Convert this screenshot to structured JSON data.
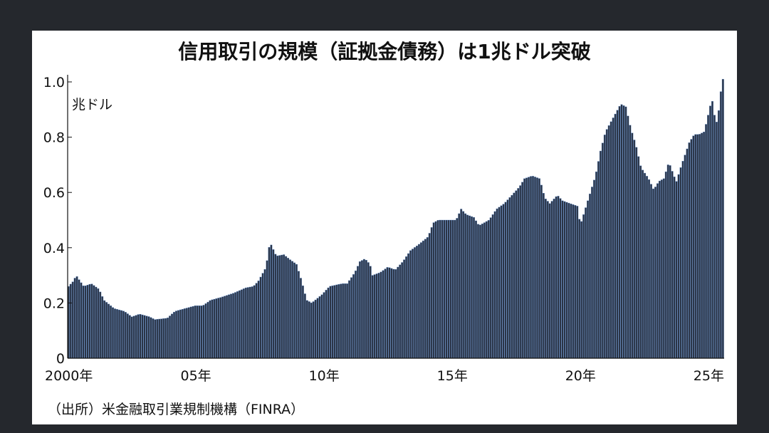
{
  "title": "信用取引の規模（証拠金債務）は1兆ドル突破",
  "unit_label": "兆ドル",
  "source": "（出所）米金融取引業規制機構（FINRA）",
  "colors": {
    "bar": "#2a3446",
    "bar_edge": "#5b86c4",
    "background": "#25282d",
    "card": "#ffffff"
  },
  "chart_data": {
    "type": "bar",
    "ylabel": "兆ドル",
    "ylim": [
      0,
      1.0
    ],
    "yticks": [
      {
        "value": 0,
        "label": "0"
      },
      {
        "value": 0.2,
        "label": "0.2"
      },
      {
        "value": 0.4,
        "label": "0.4"
      },
      {
        "value": 0.6,
        "label": "0.6"
      },
      {
        "value": 0.8,
        "label": "0.8"
      },
      {
        "value": 1.0,
        "label": "1.0"
      }
    ],
    "xrange": [
      2000.0,
      2025.6
    ],
    "xticks": [
      {
        "value": 2000,
        "label": "2000年"
      },
      {
        "value": 2005,
        "label": "05年"
      },
      {
        "value": 2010,
        "label": "10年"
      },
      {
        "value": 2015,
        "label": "15年"
      },
      {
        "value": 2020,
        "label": "20年"
      },
      {
        "value": 2025,
        "label": "25年"
      }
    ],
    "anchors": [
      [
        2000.0,
        0.26
      ],
      [
        2000.2,
        0.28
      ],
      [
        2000.3,
        0.3
      ],
      [
        2000.6,
        0.26
      ],
      [
        2000.9,
        0.27
      ],
      [
        2001.2,
        0.25
      ],
      [
        2001.4,
        0.21
      ],
      [
        2001.8,
        0.18
      ],
      [
        2002.2,
        0.17
      ],
      [
        2002.5,
        0.15
      ],
      [
        2002.8,
        0.16
      ],
      [
        2003.2,
        0.15
      ],
      [
        2003.4,
        0.14
      ],
      [
        2003.9,
        0.145
      ],
      [
        2004.2,
        0.17
      ],
      [
        2004.6,
        0.18
      ],
      [
        2005.0,
        0.19
      ],
      [
        2005.3,
        0.19
      ],
      [
        2005.6,
        0.21
      ],
      [
        2006.0,
        0.22
      ],
      [
        2006.5,
        0.235
      ],
      [
        2007.0,
        0.255
      ],
      [
        2007.3,
        0.26
      ],
      [
        2007.5,
        0.28
      ],
      [
        2007.8,
        0.33
      ],
      [
        2007.9,
        0.4
      ],
      [
        2008.0,
        0.41
      ],
      [
        2008.2,
        0.37
      ],
      [
        2008.5,
        0.375
      ],
      [
        2008.7,
        0.36
      ],
      [
        2009.0,
        0.34
      ],
      [
        2009.2,
        0.28
      ],
      [
        2009.4,
        0.21
      ],
      [
        2009.6,
        0.2
      ],
      [
        2010.0,
        0.23
      ],
      [
        2010.3,
        0.26
      ],
      [
        2010.8,
        0.27
      ],
      [
        2011.0,
        0.27
      ],
      [
        2011.3,
        0.31
      ],
      [
        2011.5,
        0.35
      ],
      [
        2011.7,
        0.36
      ],
      [
        2011.9,
        0.34
      ],
      [
        2012.0,
        0.3
      ],
      [
        2012.3,
        0.31
      ],
      [
        2012.6,
        0.33
      ],
      [
        2012.9,
        0.32
      ],
      [
        2013.2,
        0.35
      ],
      [
        2013.5,
        0.39
      ],
      [
        2013.8,
        0.41
      ],
      [
        2014.2,
        0.44
      ],
      [
        2014.4,
        0.49
      ],
      [
        2014.6,
        0.5
      ],
      [
        2015.0,
        0.5
      ],
      [
        2015.3,
        0.5
      ],
      [
        2015.5,
        0.54
      ],
      [
        2015.7,
        0.52
      ],
      [
        2016.0,
        0.51
      ],
      [
        2016.2,
        0.48
      ],
      [
        2016.6,
        0.5
      ],
      [
        2016.9,
        0.54
      ],
      [
        2017.2,
        0.56
      ],
      [
        2017.5,
        0.59
      ],
      [
        2017.8,
        0.62
      ],
      [
        2018.0,
        0.65
      ],
      [
        2018.3,
        0.66
      ],
      [
        2018.6,
        0.65
      ],
      [
        2018.8,
        0.58
      ],
      [
        2019.0,
        0.56
      ],
      [
        2019.3,
        0.59
      ],
      [
        2019.5,
        0.57
      ],
      [
        2019.8,
        0.56
      ],
      [
        2020.1,
        0.55
      ],
      [
        2020.2,
        0.48
      ],
      [
        2020.5,
        0.57
      ],
      [
        2020.8,
        0.66
      ],
      [
        2021.0,
        0.75
      ],
      [
        2021.2,
        0.82
      ],
      [
        2021.5,
        0.87
      ],
      [
        2021.8,
        0.92
      ],
      [
        2022.0,
        0.91
      ],
      [
        2022.2,
        0.83
      ],
      [
        2022.4,
        0.77
      ],
      [
        2022.6,
        0.69
      ],
      [
        2022.9,
        0.65
      ],
      [
        2023.1,
        0.61
      ],
      [
        2023.3,
        0.64
      ],
      [
        2023.5,
        0.65
      ],
      [
        2023.7,
        0.71
      ],
      [
        2023.9,
        0.66
      ],
      [
        2024.0,
        0.64
      ],
      [
        2024.2,
        0.7
      ],
      [
        2024.5,
        0.78
      ],
      [
        2024.7,
        0.81
      ],
      [
        2024.9,
        0.81
      ],
      [
        2025.1,
        0.82
      ],
      [
        2025.3,
        0.9
      ],
      [
        2025.4,
        0.94
      ],
      [
        2025.5,
        0.88
      ],
      [
        2025.6,
        0.85
      ],
      [
        2025.7,
        0.92
      ],
      [
        2025.8,
        1.01
      ]
    ]
  }
}
